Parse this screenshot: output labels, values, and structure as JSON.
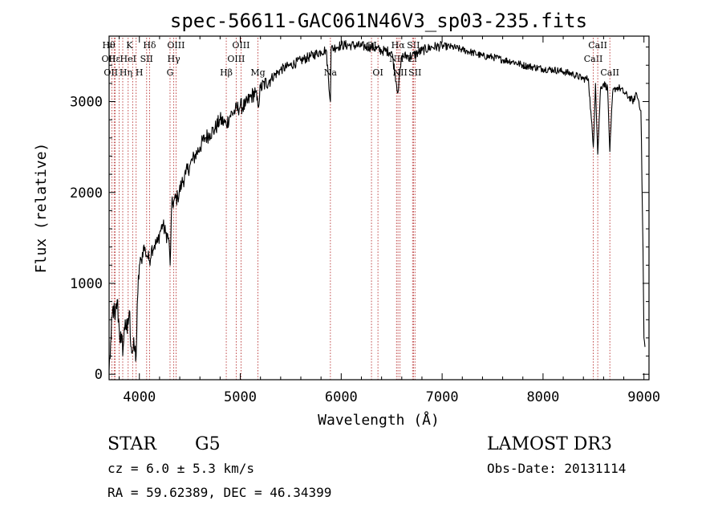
{
  "chart_data": {
    "type": "line",
    "title": "spec-56611-GAC061N46V3_sp03-235.fits",
    "xlabel": "Wavelength (Å)",
    "ylabel": "Flux (relative)",
    "xlim": [
      3700,
      9050
    ],
    "ylim": [
      -60,
      3720
    ],
    "x_ticks": [
      4000,
      5000,
      6000,
      7000,
      8000,
      9000
    ],
    "x_tick_labels": [
      "4000",
      "5000",
      "6000",
      "7000",
      "8000",
      "9000"
    ],
    "y_ticks": [
      0,
      1000,
      2000,
      3000
    ],
    "y_tick_labels": [
      "0",
      "1000",
      "2000",
      "3000"
    ],
    "series": [
      {
        "name": "flux",
        "color": "#000000",
        "x": [
          3700,
          3720,
          3740,
          3760,
          3780,
          3800,
          3820,
          3840,
          3860,
          3880,
          3900,
          3920,
          3933,
          3950,
          3968,
          3985,
          4000,
          4020,
          4040,
          4060,
          4080,
          4101,
          4120,
          4150,
          4180,
          4200,
          4230,
          4260,
          4290,
          4305,
          4320,
          4340,
          4380,
          4420,
          4460,
          4500,
          4550,
          4600,
          4650,
          4700,
          4750,
          4800,
          4861,
          4900,
          4950,
          5000,
          5050,
          5100,
          5150,
          5175,
          5200,
          5300,
          5400,
          5500,
          5600,
          5700,
          5800,
          5850,
          5893,
          5900,
          5950,
          6000,
          6100,
          6200,
          6300,
          6400,
          6500,
          6563,
          6600,
          6700,
          6800,
          6900,
          7000,
          7100,
          7200,
          7300,
          7400,
          7500,
          7600,
          7700,
          7800,
          7900,
          8000,
          8100,
          8200,
          8300,
          8400,
          8450,
          8498,
          8520,
          8542,
          8570,
          8600,
          8640,
          8662,
          8690,
          8720,
          8760,
          8800,
          8850,
          8900,
          8920,
          8950,
          8970,
          8990,
          9000,
          9010
        ],
        "values": [
          50,
          400,
          750,
          600,
          820,
          500,
          350,
          300,
          600,
          450,
          700,
          300,
          250,
          280,
          200,
          900,
          1200,
          1250,
          1400,
          1350,
          1300,
          1250,
          1380,
          1420,
          1450,
          1550,
          1650,
          1550,
          1500,
          1200,
          1850,
          1900,
          1950,
          2100,
          2200,
          2300,
          2400,
          2500,
          2600,
          2650,
          2700,
          2800,
          2750,
          2850,
          2900,
          2950,
          2950,
          3050,
          3100,
          2950,
          3150,
          3250,
          3350,
          3400,
          3450,
          3500,
          3550,
          3570,
          3000,
          3580,
          3600,
          3620,
          3620,
          3610,
          3600,
          3560,
          3550,
          3100,
          3500,
          3500,
          3560,
          3600,
          3610,
          3600,
          3570,
          3540,
          3500,
          3490,
          3460,
          3440,
          3400,
          3380,
          3360,
          3350,
          3330,
          3300,
          3250,
          3250,
          2500,
          3200,
          2420,
          3150,
          3200,
          3150,
          2450,
          3100,
          3150,
          3150,
          3100,
          3050,
          3000,
          3100,
          3000,
          2900,
          1400,
          400,
          300
        ]
      }
    ],
    "line_markers": [
      {
        "wavelength": 3727,
        "tier": 1,
        "label": "OII"
      },
      {
        "wavelength": 3750,
        "tier": 2,
        "label": "OII"
      },
      {
        "wavelength": 3760,
        "tier": 0,
        "label": "Hθ"
      },
      {
        "wavelength": 3800,
        "tier": 1,
        "label": "Hε"
      },
      {
        "wavelength": 3835,
        "tier": 2,
        "label": "Hη"
      },
      {
        "wavelength": 3889,
        "tier": 1,
        "label": "HeI"
      },
      {
        "wavelength": 3933,
        "tier": 0,
        "label": "K"
      },
      {
        "wavelength": 3968,
        "tier": 2,
        "label": "H"
      },
      {
        "wavelength": 4072,
        "tier": 1,
        "label": "SII"
      },
      {
        "wavelength": 4101,
        "tier": 0,
        "label": "Hδ"
      },
      {
        "wavelength": 4304,
        "tier": 2,
        "label": "G"
      },
      {
        "wavelength": 4341,
        "tier": 1,
        "label": "Hγ"
      },
      {
        "wavelength": 4363,
        "tier": 0,
        "label": "OIII"
      },
      {
        "wavelength": 4861,
        "tier": 2,
        "label": "Hβ"
      },
      {
        "wavelength": 4959,
        "tier": 1,
        "label": "OIII"
      },
      {
        "wavelength": 5007,
        "tier": 0,
        "label": "OIII"
      },
      {
        "wavelength": 5175,
        "tier": 2,
        "label": "Mg"
      },
      {
        "wavelength": 5893,
        "tier": 2,
        "label": "Na"
      },
      {
        "wavelength": 6300,
        "tier": 0,
        "label": "OI"
      },
      {
        "wavelength": 6364,
        "tier": 2,
        "label": "OI"
      },
      {
        "wavelength": 6548,
        "tier": 1,
        "label": "NII"
      },
      {
        "wavelength": 6563,
        "tier": 0,
        "label": "Hα"
      },
      {
        "wavelength": 6583,
        "tier": 2,
        "label": "NII"
      },
      {
        "wavelength": 6707,
        "tier": 1,
        "label": "Li"
      },
      {
        "wavelength": 6716,
        "tier": 0,
        "label": "SII"
      },
      {
        "wavelength": 6731,
        "tier": 2,
        "label": "SII"
      },
      {
        "wavelength": 8498,
        "tier": 1,
        "label": "CaII"
      },
      {
        "wavelength": 8542,
        "tier": 0,
        "label": "CaII"
      },
      {
        "wavelength": 8662,
        "tier": 2,
        "label": "CaII"
      }
    ]
  },
  "info": {
    "class": "STAR",
    "subclass": "G5",
    "survey": "LAMOST DR3",
    "cz": "cz = 6.0 ± 5.3 km/s",
    "obs_date": "Obs-Date: 20131114",
    "coords": "RA =  59.62389, DEC =  46.34399"
  },
  "colors": {
    "line_marker": "#b22222",
    "spectrum": "#000000",
    "axes": "#000000"
  }
}
